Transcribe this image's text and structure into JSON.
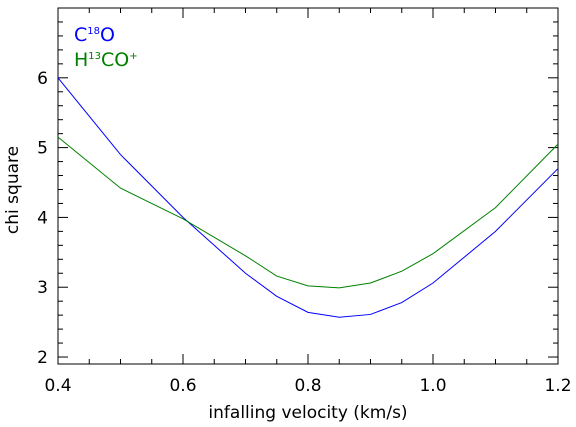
{
  "chart_data": {
    "type": "line",
    "title": "",
    "xlabel": "infalling velocity (km/s)",
    "ylabel": "chi square",
    "xlim": [
      0.4,
      1.2
    ],
    "ylim": [
      1.9,
      7.0
    ],
    "xticks": [
      0.4,
      0.6,
      0.8,
      1.0,
      1.2
    ],
    "xtick_labels": [
      "0.4",
      "0.6",
      "0.8",
      "1.0",
      "1.2"
    ],
    "yticks": [
      2,
      3,
      4,
      5,
      6
    ],
    "ytick_labels": [
      "2",
      "3",
      "4",
      "5",
      "6"
    ],
    "grid": false,
    "legend_position": "top-left",
    "series": [
      {
        "name": "C18O",
        "label_main": "C",
        "label_sup": "18",
        "label_tail": "O",
        "color": "#0000ff",
        "x": [
          0.4,
          0.5,
          0.6,
          0.7,
          0.75,
          0.8,
          0.85,
          0.9,
          0.95,
          1.0,
          1.1,
          1.2
        ],
        "y": [
          6.0,
          4.9,
          4.0,
          3.2,
          2.87,
          2.64,
          2.57,
          2.61,
          2.78,
          3.06,
          3.8,
          4.7
        ]
      },
      {
        "name": "H13CO+",
        "label_main": "H",
        "label_sup": "13",
        "label_tail": "CO",
        "label_sup2": "+",
        "color": "#008000",
        "x": [
          0.4,
          0.5,
          0.6,
          0.7,
          0.75,
          0.8,
          0.85,
          0.9,
          0.95,
          1.0,
          1.1,
          1.2
        ],
        "y": [
          5.15,
          4.42,
          3.98,
          3.45,
          3.16,
          3.02,
          2.99,
          3.06,
          3.23,
          3.48,
          4.14,
          5.05
        ]
      }
    ]
  }
}
